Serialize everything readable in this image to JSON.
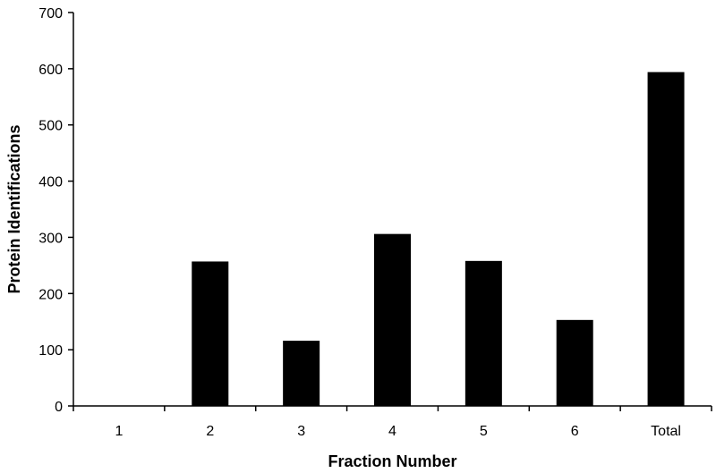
{
  "chart_data": {
    "type": "bar",
    "title": "",
    "xlabel": "Fraction Number",
    "ylabel": "Protein Identifications",
    "categories": [
      "1",
      "2",
      "3",
      "4",
      "5",
      "6",
      "Total"
    ],
    "values": [
      0,
      257,
      116,
      306,
      258,
      153,
      594
    ],
    "ylim": [
      0,
      700
    ],
    "yticks": [
      0,
      100,
      200,
      300,
      400,
      500,
      600,
      700
    ],
    "grid": false,
    "legend": "none",
    "bar_color": "#000000"
  }
}
